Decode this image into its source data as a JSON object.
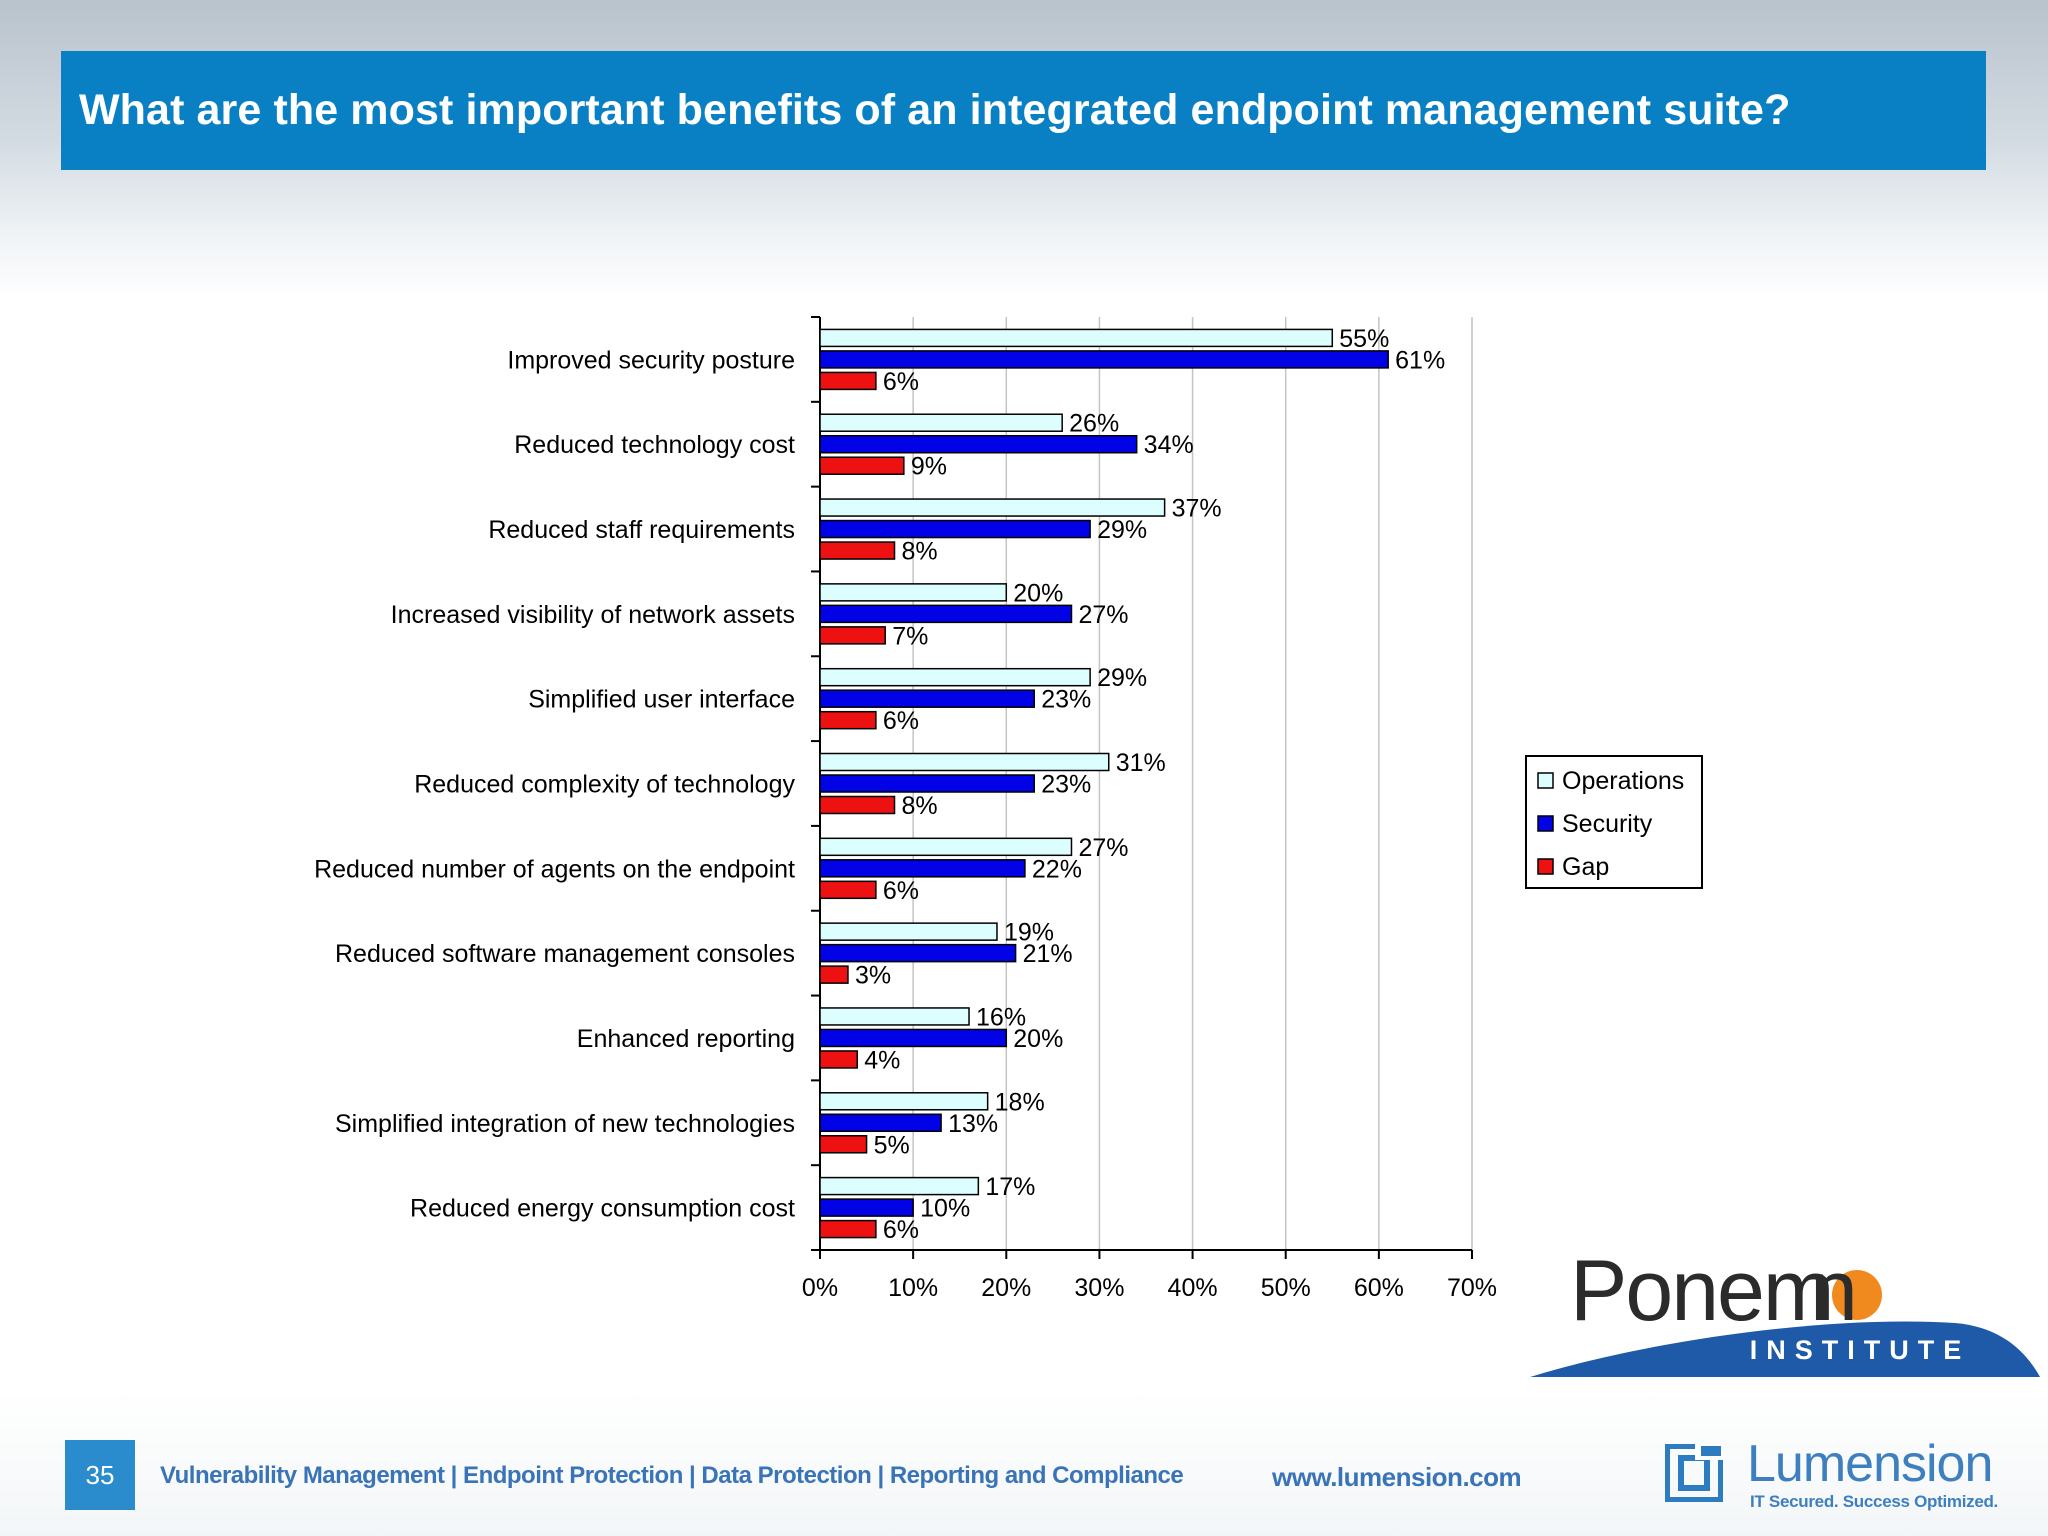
{
  "slide": {
    "title": "What are the most important benefits of an integrated endpoint management suite?",
    "page_number": "35",
    "footer_tagline": "Vulnerability Management | Endpoint Protection | Data Protection | Reporting and Compliance",
    "footer_url": "www.lumension.com"
  },
  "logos": {
    "ponemon": {
      "name": "Ponemon",
      "sub": "INSTITUTE"
    },
    "lumension": {
      "name": "Lumension",
      "tagline": "IT Secured. Success Optimized."
    }
  },
  "colors": {
    "title_bar": "#0a80c4",
    "operations": "#dcfefe",
    "security": "#0202e6",
    "gap": "#ee1111",
    "footer_text": "#3a74b8"
  },
  "chart_data": {
    "type": "bar",
    "orientation": "horizontal",
    "categories": [
      "Improved security posture",
      "Reduced technology cost",
      "Reduced staff requirements",
      "Increased visibility of network assets",
      "Simplified user interface",
      "Reduced complexity of technology",
      "Reduced number of agents on the endpoint",
      "Reduced software management consoles",
      "Enhanced reporting",
      "Simplified integration of new technologies",
      "Reduced energy consumption cost"
    ],
    "series": [
      {
        "name": "Operations",
        "values": [
          55,
          26,
          37,
          20,
          29,
          31,
          27,
          19,
          16,
          18,
          17
        ]
      },
      {
        "name": "Security",
        "values": [
          61,
          34,
          29,
          27,
          23,
          23,
          22,
          21,
          20,
          13,
          10
        ]
      },
      {
        "name": "Gap",
        "values": [
          6,
          9,
          8,
          7,
          6,
          8,
          6,
          3,
          4,
          5,
          6
        ]
      }
    ],
    "xlim": [
      0,
      70
    ],
    "xticks": [
      "0%",
      "10%",
      "20%",
      "30%",
      "40%",
      "50%",
      "60%",
      "70%"
    ],
    "value_suffix": "%",
    "grid": "vertical",
    "legend": "right"
  }
}
